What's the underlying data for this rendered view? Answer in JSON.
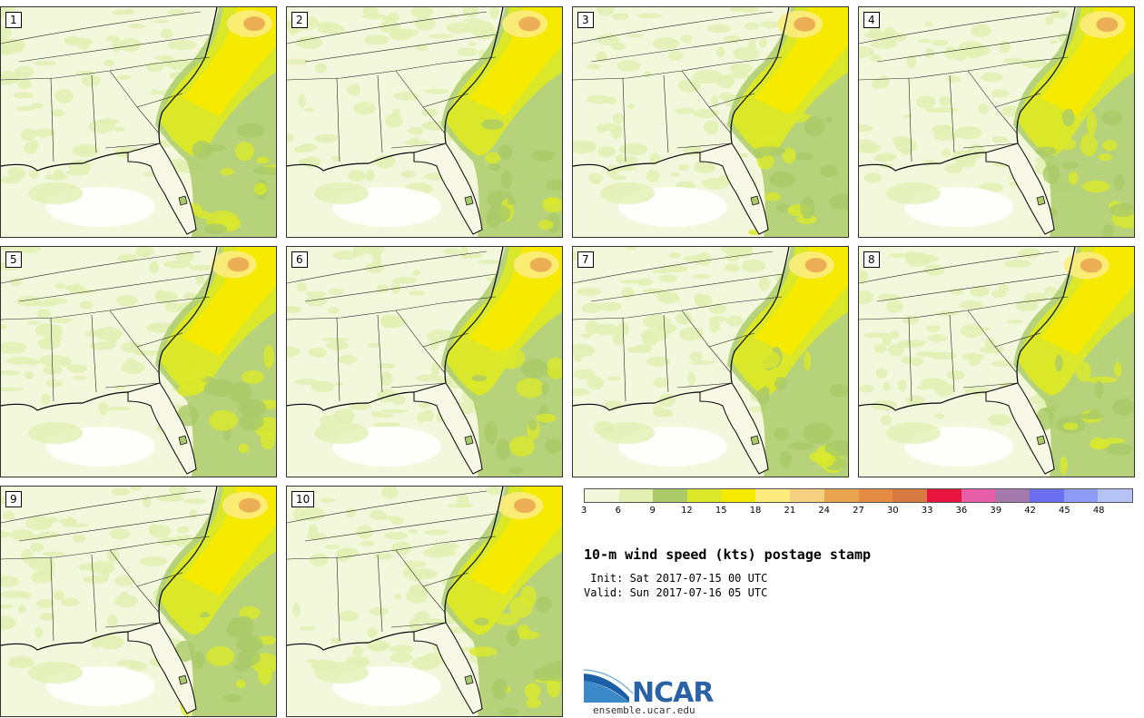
{
  "panels": [
    "1",
    "2",
    "3",
    "4",
    "5",
    "6",
    "7",
    "8",
    "9",
    "10"
  ],
  "colorbar": {
    "colors": [
      "#f3f7dc",
      "#e2f0b4",
      "#aacb68",
      "#dbe82a",
      "#f6ea00",
      "#fcec7e",
      "#f4d080",
      "#eaa450",
      "#e58c44",
      "#d67a42",
      "#e8133e",
      "#e65ea8",
      "#a479ac",
      "#6c70f0",
      "#8e9bf4",
      "#b5c4f4"
    ],
    "tick_labels": [
      "3",
      "6",
      "9",
      "12",
      "15",
      "18",
      "21",
      "24",
      "27",
      "30",
      "33",
      "36",
      "39",
      "42",
      "45",
      "48"
    ]
  },
  "title": "10-m wind speed (kts) postage stamp",
  "init_line": " Init: Sat 2017-07-15 00 UTC",
  "valid_line": "Valid: Sun 2017-07-16 05 UTC",
  "logo": {
    "name": "NCAR",
    "url": "ensemble.ucar.edu",
    "colors": {
      "swoosh_dark": "#1b5fa6",
      "swoosh_light": "#3b89c9",
      "text": "#2a62a5"
    }
  }
}
